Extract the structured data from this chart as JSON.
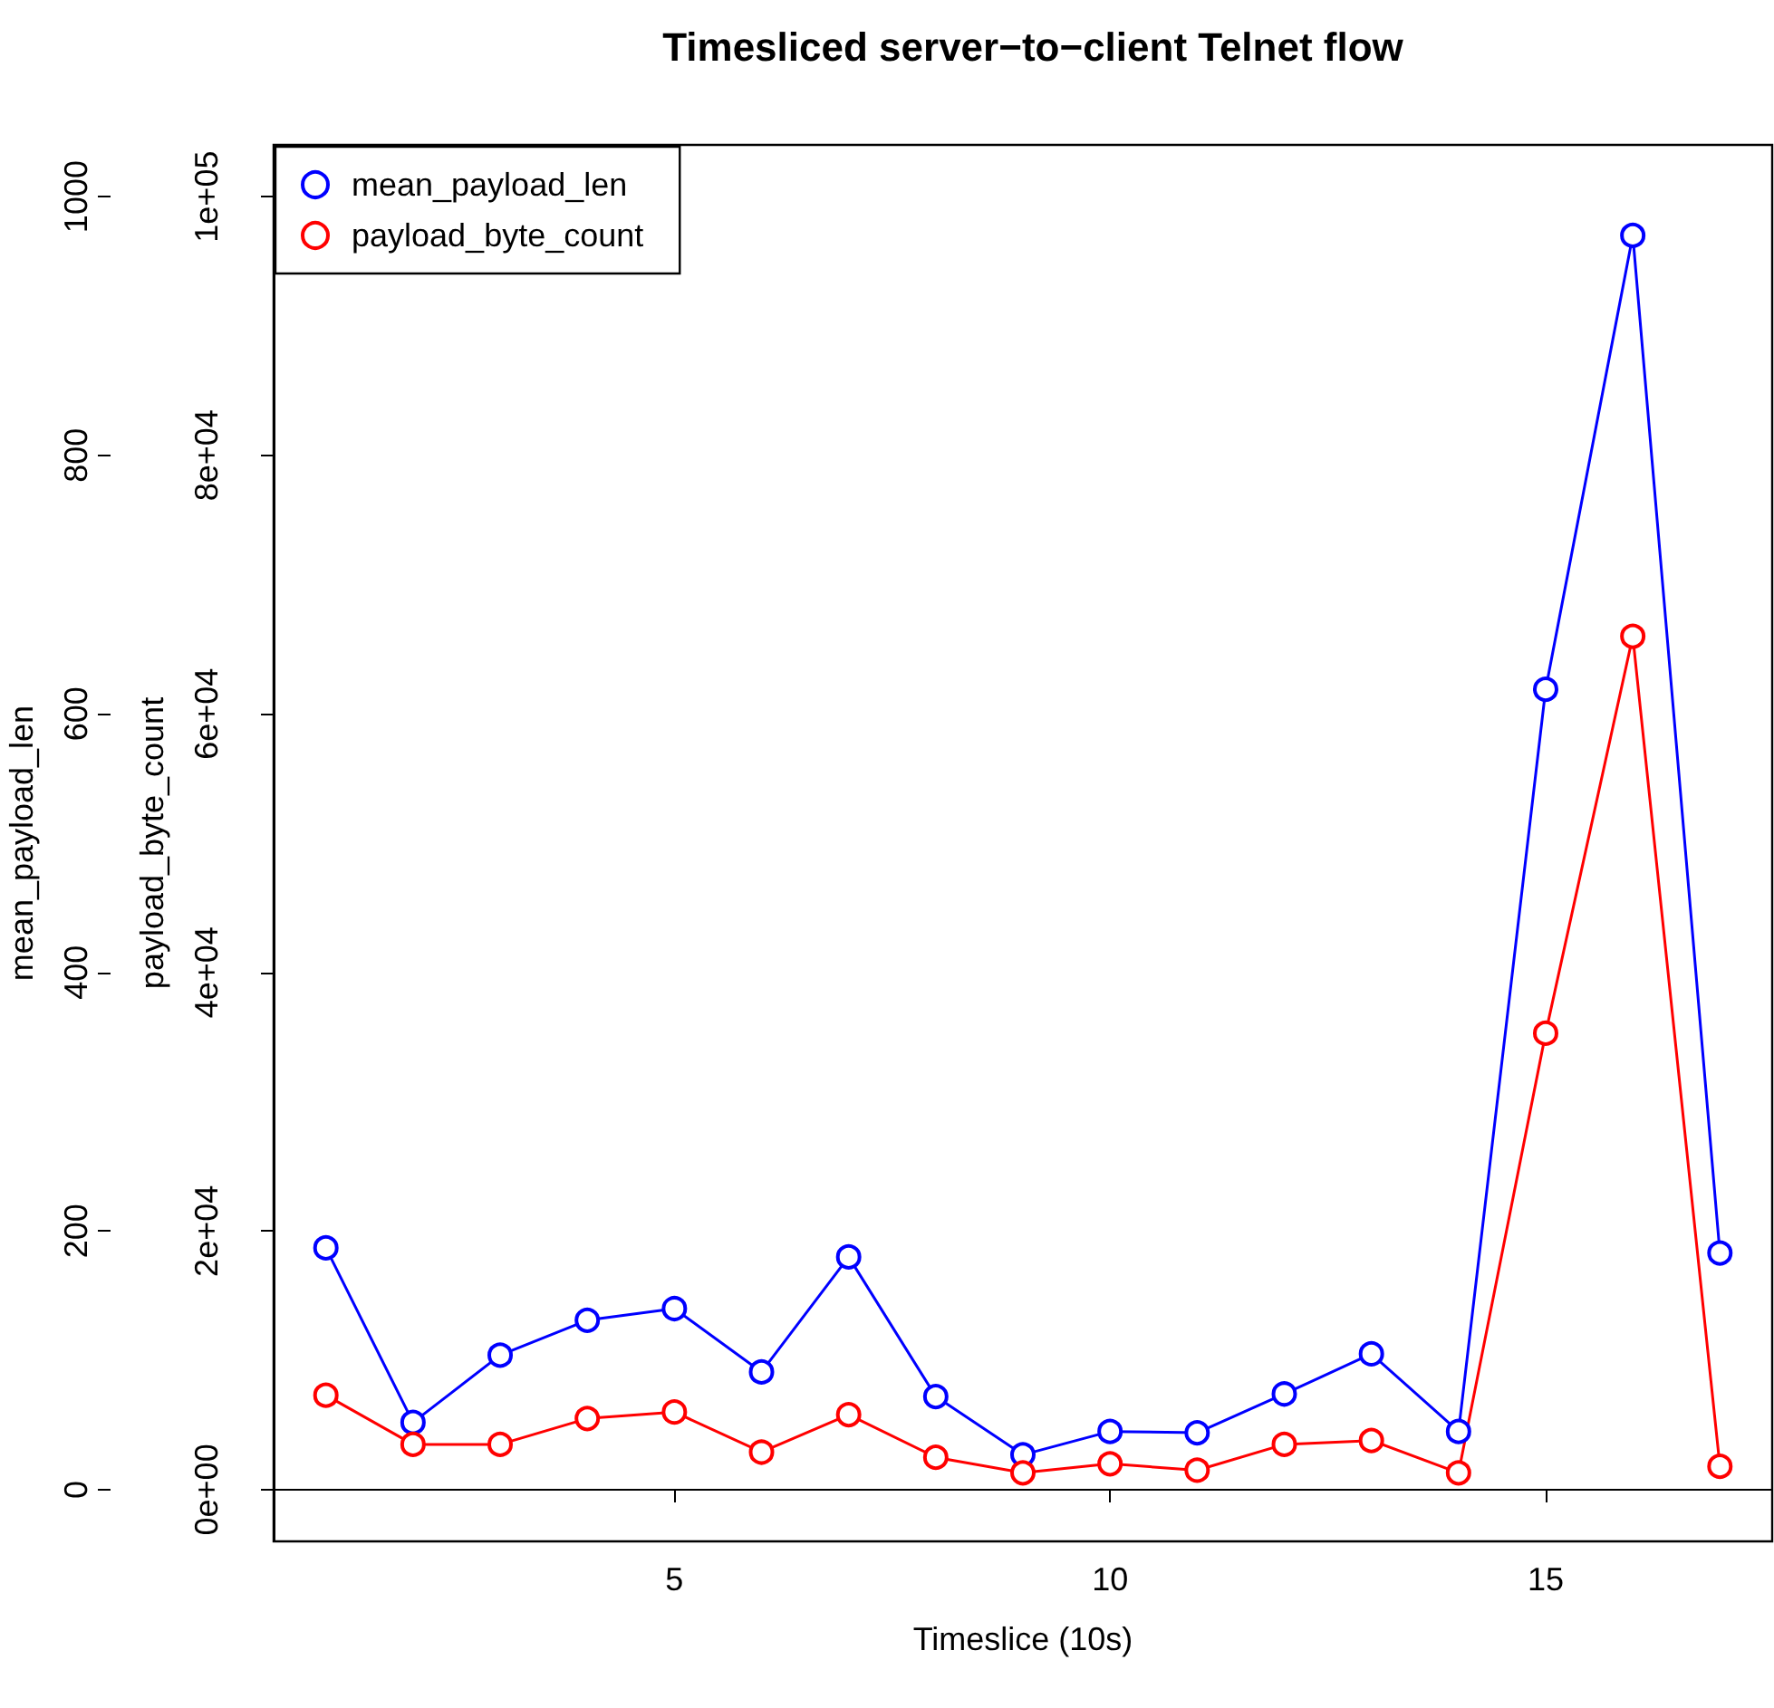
{
  "chart_data": {
    "type": "line",
    "title": "Timesliced server−to−client Telnet flow",
    "xlabel": "Timeslice (10s)",
    "ylabel": "mean_payload_len",
    "y2label": "payload_byte_count",
    "x": [
      1,
      2,
      3,
      4,
      5,
      6,
      7,
      8,
      9,
      10,
      11,
      12,
      13,
      14,
      15,
      16,
      17
    ],
    "series": [
      {
        "name": "mean_payload_len",
        "color": "#0000ff",
        "values": [
          187,
          52,
          104,
          131,
          140,
          91,
          180,
          72,
          27,
          45,
          44,
          74,
          105,
          45,
          619,
          970,
          183
        ]
      },
      {
        "name": "payload_byte_count",
        "color": "#ff0000",
        "axis": "y2",
        "values": [
          7300,
          3500,
          3500,
          5500,
          6000,
          2900,
          5800,
          2500,
          1300,
          2000,
          1500,
          3500,
          3800,
          1300,
          35300,
          66000,
          1800
        ]
      }
    ],
    "xlim": [
      0.4,
      17.6
    ],
    "xticks": [
      5,
      10,
      15
    ],
    "ylim": [
      -40,
      1040
    ],
    "yticks": [
      0,
      200,
      400,
      600,
      800,
      1000
    ],
    "y2lim": [
      -4000,
      104000
    ],
    "y2ticks": [
      {
        "value": 0,
        "label": "0e+00"
      },
      {
        "value": 20000,
        "label": "2e+04"
      },
      {
        "value": 40000,
        "label": "4e+04"
      },
      {
        "value": 60000,
        "label": "6e+04"
      },
      {
        "value": 80000,
        "label": "8e+04"
      },
      {
        "value": 100000,
        "label": "1e+05"
      }
    ],
    "legend": "top left",
    "marker": "circle",
    "line_style": "solid"
  }
}
